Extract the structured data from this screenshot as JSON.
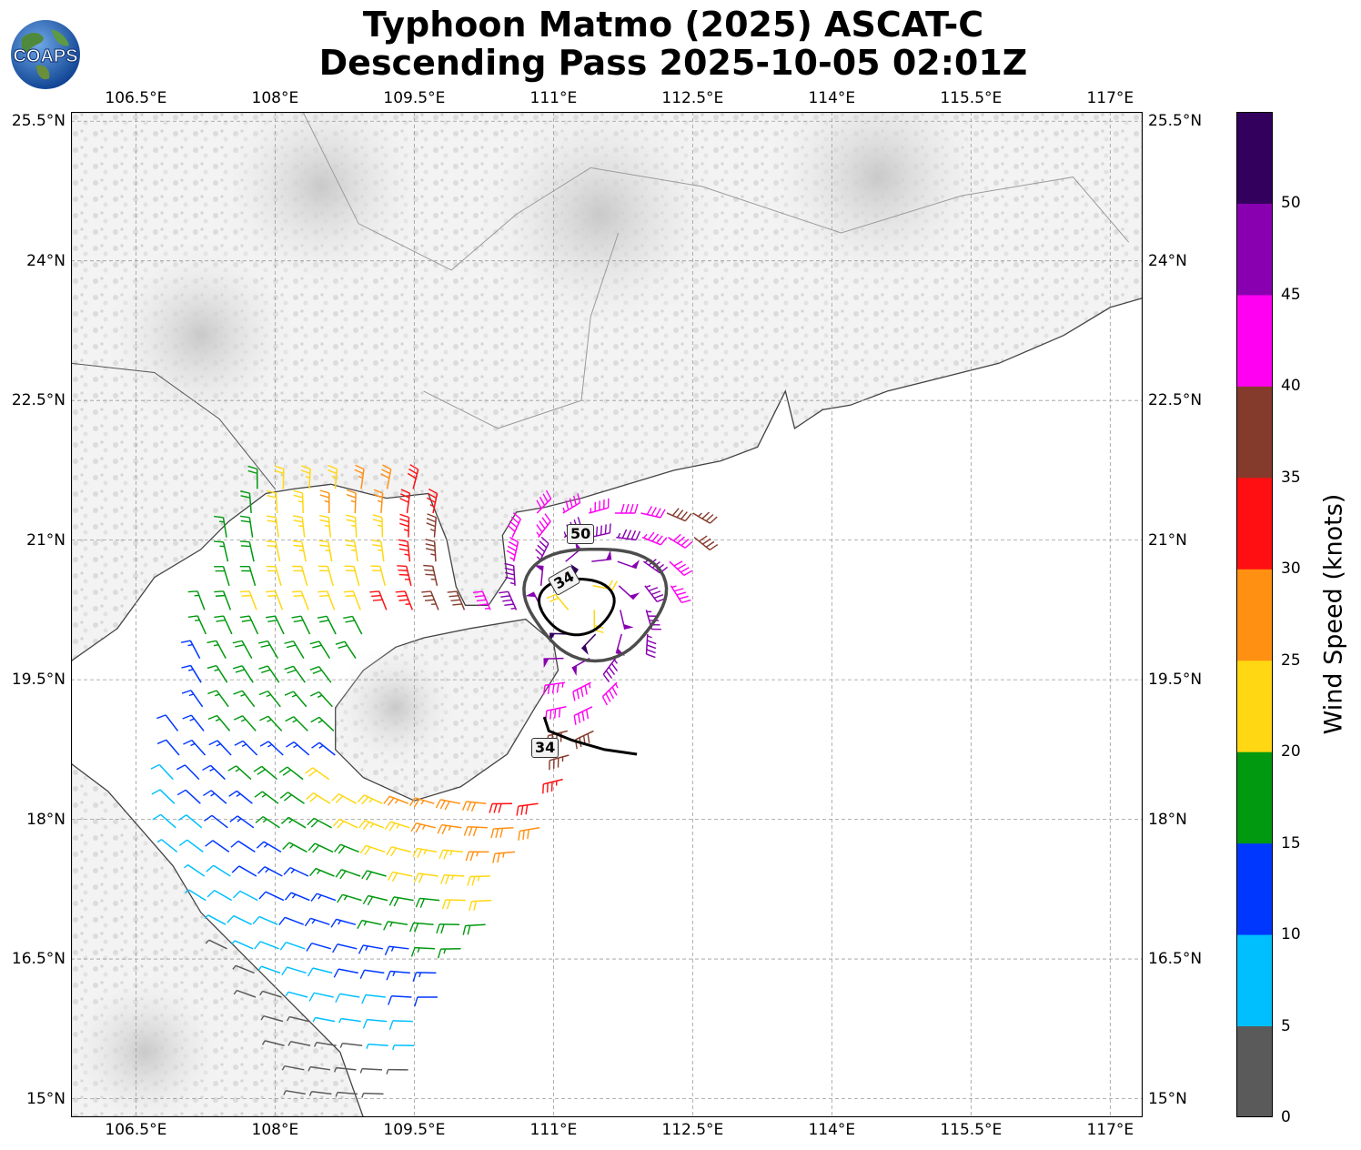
{
  "title": {
    "line1": "Typhoon Matmo (2025) ASCAT-C",
    "line2": "Descending Pass 2025-10-05 02:01Z"
  },
  "logo": {
    "text": "COAPS",
    "icon": "globe-icon"
  },
  "map": {
    "lon_range": [
      105.8,
      117.35
    ],
    "lat_range": [
      14.8,
      25.6
    ],
    "lon_ticks": [
      "106.5°E",
      "108°E",
      "109.5°E",
      "111°E",
      "112.5°E",
      "114°E",
      "115.5°E",
      "117°E"
    ],
    "lat_ticks": [
      "25.5°N",
      "24°N",
      "22.5°N",
      "21°N",
      "19.5°N",
      "18°N",
      "16.5°N",
      "15°N"
    ],
    "grid": true,
    "background": "grayscale terrain"
  },
  "contours": [
    {
      "label": "50",
      "value": 50,
      "color": "#4d4d4d"
    },
    {
      "label": "34",
      "value": 34,
      "color": "#000000"
    },
    {
      "label": "34",
      "value": 34,
      "color": "#000000"
    }
  ],
  "colorbar": {
    "title": "Wind Speed (knots)",
    "ticks": [
      "0",
      "5",
      "10",
      "15",
      "20",
      "25",
      "30",
      "35",
      "40",
      "45",
      "50"
    ],
    "bins": [
      {
        "min": 0,
        "max": 5,
        "color": "#5a5a5a"
      },
      {
        "min": 5,
        "max": 10,
        "color": "#00bfff"
      },
      {
        "min": 10,
        "max": 15,
        "color": "#0037ff"
      },
      {
        "min": 15,
        "max": 20,
        "color": "#00990f"
      },
      {
        "min": 20,
        "max": 25,
        "color": "#ffd712"
      },
      {
        "min": 25,
        "max": 30,
        "color": "#ff9012"
      },
      {
        "min": 30,
        "max": 35,
        "color": "#ff0f12"
      },
      {
        "min": 35,
        "max": 40,
        "color": "#853b2b"
      },
      {
        "min": 40,
        "max": 45,
        "color": "#ff00f2"
      },
      {
        "min": 45,
        "max": 50,
        "color": "#8800b0"
      },
      {
        "min": 50,
        "max": 55,
        "color": "#33005e"
      }
    ]
  },
  "storm_center": {
    "lon": 111.3,
    "lat": 20.3
  }
}
